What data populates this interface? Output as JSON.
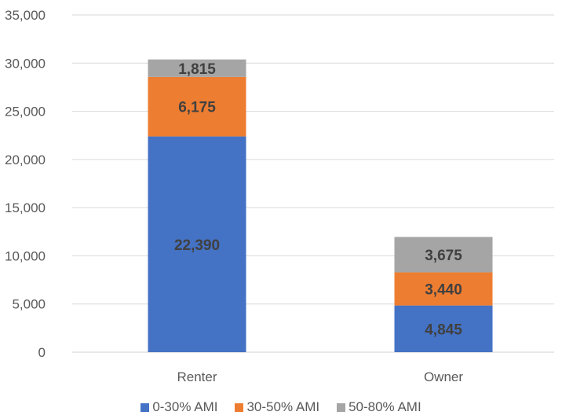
{
  "chart_data": {
    "type": "bar",
    "stacked": true,
    "categories": [
      "Renter",
      "Owner"
    ],
    "series": [
      {
        "name": "0-30% AMI",
        "values": [
          22390,
          4845
        ],
        "color": "#4472C4",
        "labels": [
          "22,390",
          "4,845"
        ]
      },
      {
        "name": "30-50% AMI",
        "values": [
          6175,
          3440
        ],
        "color": "#ED7D31",
        "labels": [
          "6,175",
          "3,440"
        ]
      },
      {
        "name": "50-80% AMI",
        "values": [
          1815,
          3675
        ],
        "color": "#A5A5A5",
        "labels": [
          "1,815",
          "3,675"
        ]
      }
    ],
    "yticks": [
      "0",
      "5,000",
      "10,000",
      "15,000",
      "20,000",
      "25,000",
      "30,000",
      "35,000"
    ],
    "ylim": [
      0,
      35000
    ],
    "title": "",
    "xlabel": "",
    "ylabel": "",
    "grid": true,
    "legend_position": "bottom"
  }
}
